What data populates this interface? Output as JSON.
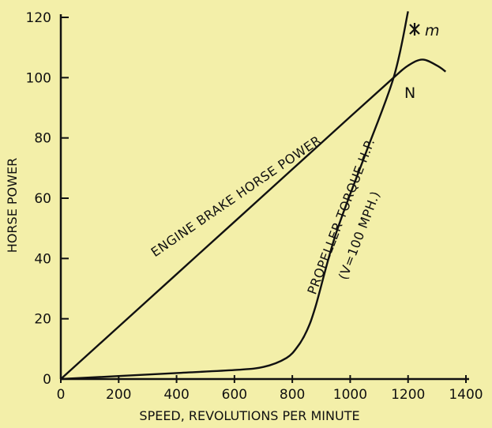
{
  "chart_data": {
    "type": "line",
    "title": "",
    "xlabel": "SPEED, REVOLUTIONS PER MINUTE",
    "ylabel": "HORSE POWER",
    "xlim": [
      0,
      1400
    ],
    "ylim": [
      0,
      120
    ],
    "xticks": [
      0,
      200,
      400,
      600,
      800,
      1000,
      1200,
      1400
    ],
    "yticks": [
      0,
      20,
      40,
      60,
      80,
      100,
      120
    ],
    "grid": false,
    "series": [
      {
        "name": "ENGINE BRAKE HORSE POWER",
        "x": [
          0,
          200,
          400,
          600,
          800,
          1000,
          1150,
          1200,
          1250,
          1300,
          1330
        ],
        "y": [
          0,
          17.4,
          34.8,
          52.2,
          69.6,
          87,
          100,
          104,
          106,
          104,
          102
        ]
      },
      {
        "name": "PROPELLER TORQUE H.P.",
        "name_note": "(V=100 MPH.)",
        "x": [
          0,
          200,
          400,
          600,
          700,
          780,
          820,
          850,
          880,
          950,
          1050,
          1150,
          1200
        ],
        "y": [
          0,
          1,
          2,
          3,
          4,
          7,
          11,
          16,
          24,
          48,
          74,
          100,
          122
        ]
      }
    ],
    "annotations": [
      {
        "text": "N",
        "x": 1150,
        "y": 100
      },
      {
        "text": "m",
        "x": 1180,
        "y": 116
      }
    ]
  }
}
